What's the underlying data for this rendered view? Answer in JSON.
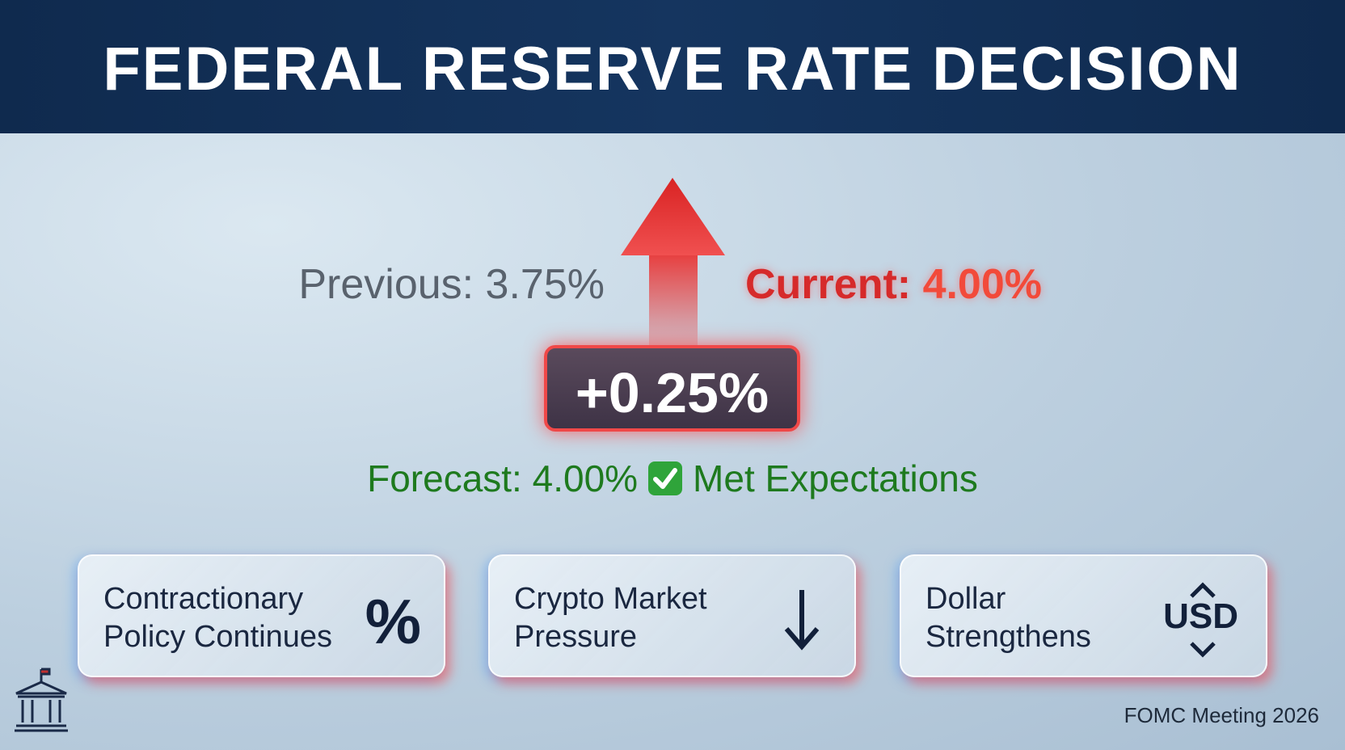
{
  "header": {
    "title": "FEDERAL RESERVE RATE DECISION"
  },
  "rate": {
    "previous": "Previous: 3.75%",
    "current_label": "Current:",
    "current_value": "4.00%",
    "change": "+0.25%",
    "forecast": "Forecast: 4.00%",
    "outcome": "Met Expectations"
  },
  "cards": [
    {
      "lines": [
        "Contractionary",
        "Policy Continues"
      ],
      "icon": "%"
    },
    {
      "lines": [
        "Crypto Market",
        "Pressure"
      ]
    },
    {
      "lines": [
        "Dollar",
        "Strengthens"
      ],
      "icon": "USD"
    }
  ],
  "footer": {
    "note": "FOMC Meeting 2026"
  }
}
